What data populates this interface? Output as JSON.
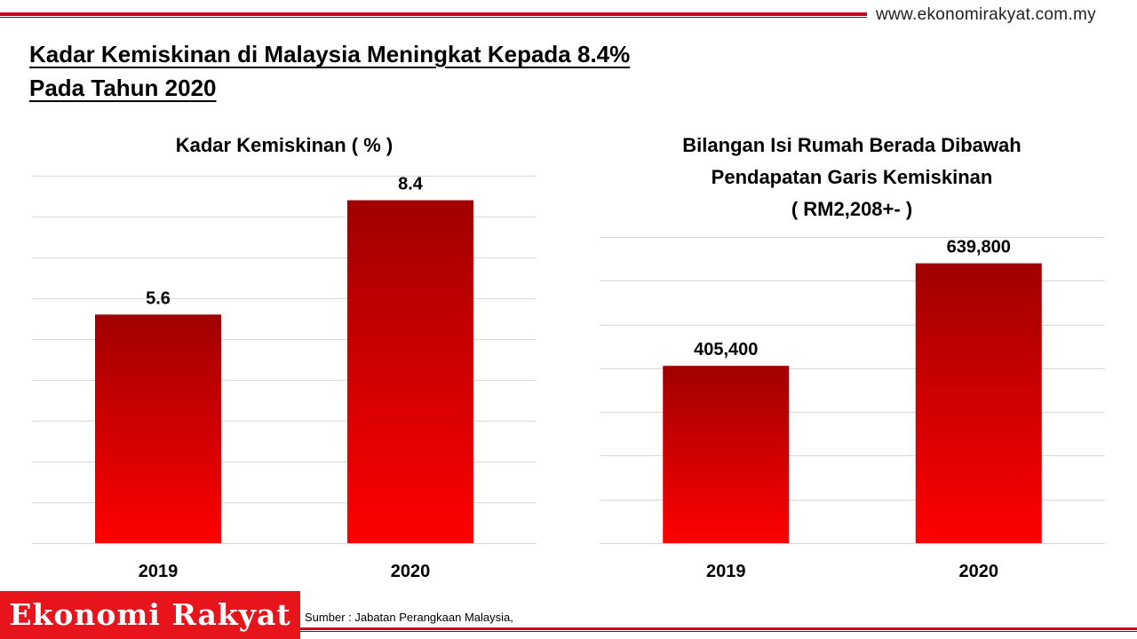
{
  "site_url": "www.ekonomirakyat.com.my",
  "headline": {
    "line1": "Kadar Kemiskinan di Malaysia Meningkat Kepada 8.4%",
    "line2": "Pada Tahun 2020"
  },
  "colors": {
    "accent": "#d0021b",
    "bar_top": "#a00000",
    "bar_bottom": "#ff0000",
    "grid": "#d9d9d9"
  },
  "chart_data": [
    {
      "type": "bar",
      "title": "Kadar Kemiskinan ( % )",
      "categories": [
        "2019",
        "2020"
      ],
      "values": [
        5.6,
        8.4
      ],
      "value_labels": [
        "5.6",
        "8.4"
      ],
      "ylim": [
        0,
        9
      ],
      "gridlines": 9
    },
    {
      "type": "bar",
      "title_lines": [
        "Bilangan Isi Rumah Berada Dibawah",
        "Pendapatan Garis Kemiskinan",
        "( RM2,208+-  )"
      ],
      "categories": [
        "2019",
        "2020"
      ],
      "values": [
        405400,
        639800
      ],
      "value_labels": [
        "405,400",
        "639,800"
      ],
      "ylim": [
        0,
        700000
      ],
      "gridlines": 7
    }
  ],
  "brand": "Ekonomi Rakyat",
  "source": "Sumber  : Jabatan Perangkaan Malaysia,"
}
